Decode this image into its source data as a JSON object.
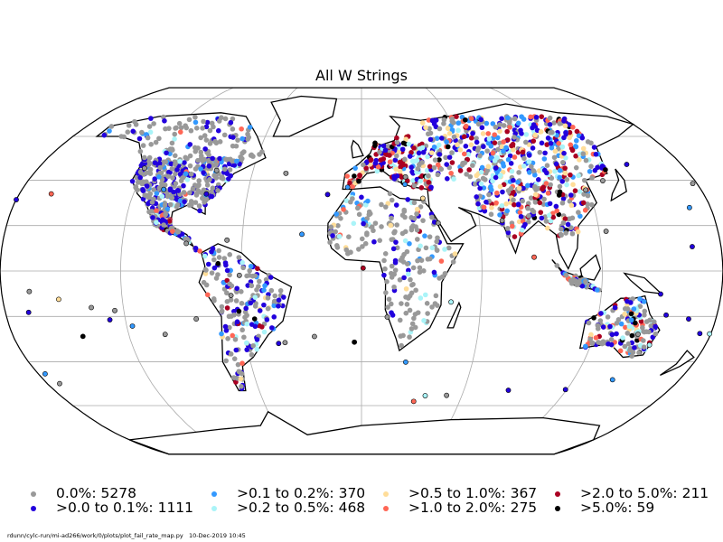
{
  "title": "All W Strings",
  "legend": [
    {
      "label": "0.0%: 5278",
      "color": "#999999"
    },
    {
      "label": ">0.0 to 0.1%: 1111",
      "color": "#2200dd"
    },
    {
      "label": ">0.1 to 0.2%: 370",
      "color": "#3399ff"
    },
    {
      "label": ">0.2 to 0.5%: 468",
      "color": "#aaf4f8"
    },
    {
      "label": ">0.5 to 1.0%: 367",
      "color": "#ffdd99"
    },
    {
      "label": ">1.0 to 2.0%: 275",
      "color": "#ff6655"
    },
    {
      "label": ">2.0 to 5.0%: 211",
      "color": "#aa0022"
    },
    {
      "label": ">5.0%: 59",
      "color": "#000000"
    }
  ],
  "map": {
    "projection": "Robinson",
    "graticule_lat_step": 20,
    "graticule_lon_step": 60,
    "land_color": "#ffffff",
    "coast_color": "#000000",
    "grid_color": "#aaaaaa"
  },
  "footer": {
    "script": "rdunn/cylc-run/mi-ad266/work/0/plots/plot_fail_rate_map.py",
    "timestamp": "10-Dec-2019 10:45"
  }
}
